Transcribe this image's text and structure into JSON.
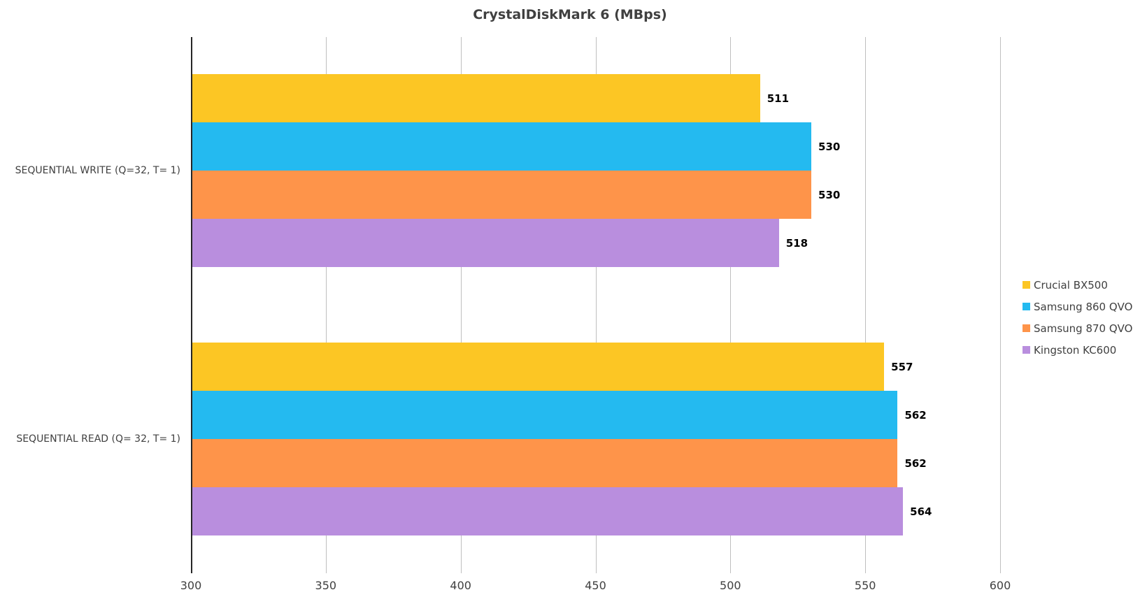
{
  "chart_data": {
    "type": "bar",
    "orientation": "horizontal",
    "title": "CrystalDiskMark 6 (MBps)",
    "xlabel": "",
    "ylabel": "",
    "xlim": [
      300,
      600
    ],
    "x_ticks": [
      "300",
      "350",
      "400",
      "450",
      "500",
      "550",
      "600"
    ],
    "grid": true,
    "legend_position": "right",
    "categories": [
      "SEQUENTIAL WRITE (Q=32, T= 1)",
      "SEQUENTIAL READ (Q= 32, T= 1)"
    ],
    "series": [
      {
        "name": "Crucial BX500",
        "color": "#fcc624",
        "values": [
          511,
          557
        ]
      },
      {
        "name": "Samsung 860 QVO",
        "color": "#24baf0",
        "values": [
          530,
          562
        ]
      },
      {
        "name": "Samsung 870 QVO",
        "color": "#fe944a",
        "values": [
          530,
          562
        ]
      },
      {
        "name": "Kingston KC600",
        "color": "#b98ede",
        "values": [
          518,
          564
        ]
      }
    ]
  }
}
